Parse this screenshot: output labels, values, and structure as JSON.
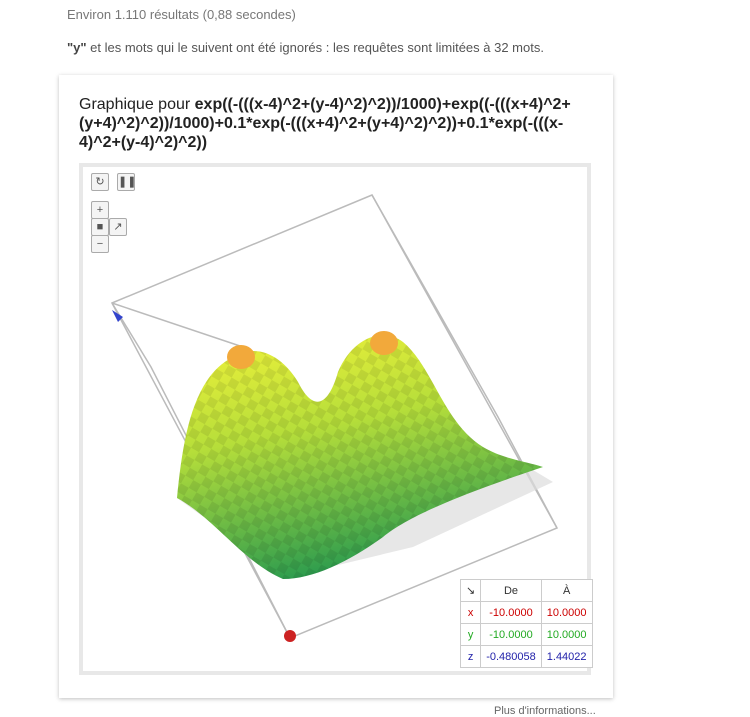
{
  "header": {
    "stats": "Environ 1.110 résultats (0,88 secondes)",
    "notice_term": "\"y\"",
    "notice_rest": " et les mots qui le suivent ont été ignorés : les requêtes sont limitées à 32 mots."
  },
  "graph": {
    "title_prefix": "Graphique pour ",
    "formula": "exp((-(((x-4)^2+(y-4)^2)^2))/1000)+exp((-(((x+4)^2+(y+4)^2)^2))/1000)+0.1*exp(-(((x+4)^2+(y+4)^2)^2))+0.1*exp(-(((x-4)^2+(y-4)^2)^2))",
    "range_table": {
      "header": [
        "↘",
        "De",
        "À"
      ],
      "rows": [
        [
          "x",
          "-10.0000",
          "10.0000"
        ],
        [
          "y",
          "-10.0000",
          "10.0000"
        ],
        [
          "z",
          "-0.480058",
          "1.44022"
        ]
      ]
    }
  },
  "footer_link": "Plus d'informations..."
}
